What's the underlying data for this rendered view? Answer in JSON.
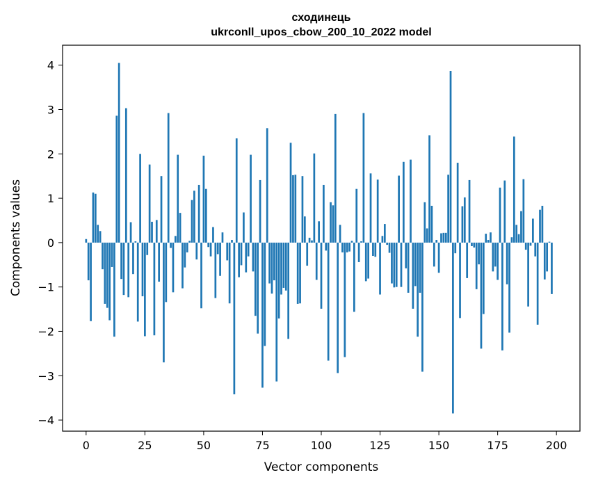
{
  "chart_data": {
    "type": "bar",
    "title": [
      "сходинець",
      "ukrconll_upos_cbow_200_10_2022 model"
    ],
    "xlabel": "Vector components",
    "ylabel": "Components values",
    "xlim": [
      -10,
      210
    ],
    "ylim": [
      -4.25,
      4.45
    ],
    "xticks": [
      0,
      25,
      50,
      75,
      100,
      125,
      150,
      175,
      200
    ],
    "yticks": [
      -4,
      -3,
      -2,
      -1,
      0,
      1,
      2,
      3,
      4
    ],
    "ytick_labels": [
      "−4",
      "−3",
      "−2",
      "−1",
      "0",
      "1",
      "2",
      "3",
      "4"
    ],
    "grid": false,
    "bar_color": "#1f77b4",
    "values": [
      0.08,
      -0.85,
      -1.77,
      1.13,
      1.1,
      0.4,
      0.26,
      -0.6,
      -1.38,
      -1.47,
      -1.75,
      -0.55,
      -2.12,
      2.86,
      4.05,
      -0.82,
      -1.18,
      3.03,
      -1.23,
      0.46,
      -0.71,
      0.03,
      -1.78,
      2.0,
      -1.21,
      -2.11,
      -0.28,
      1.76,
      0.47,
      -2.09,
      0.51,
      -0.88,
      1.5,
      -2.7,
      -1.34,
      2.92,
      -0.12,
      -1.12,
      0.15,
      1.98,
      0.67,
      -1.03,
      -0.56,
      -0.22,
      0.04,
      0.96,
      1.17,
      -0.38,
      1.3,
      -1.48,
      1.96,
      1.21,
      -0.1,
      -0.31,
      0.35,
      -1.25,
      -0.26,
      -0.75,
      0.23,
      0.0,
      -0.4,
      -1.37,
      0.06,
      -3.42,
      2.35,
      -0.78,
      -0.51,
      0.68,
      -0.67,
      -0.31,
      1.98,
      -0.65,
      -1.65,
      -2.05,
      1.41,
      -3.27,
      -2.33,
      2.58,
      -0.92,
      -1.15,
      -0.85,
      -3.13,
      -1.71,
      -1.17,
      -1.02,
      -1.08,
      -2.17,
      2.25,
      1.52,
      1.53,
      -1.38,
      -1.37,
      1.5,
      0.59,
      -0.52,
      0.11,
      0.05,
      2.01,
      -0.84,
      0.48,
      -1.49,
      1.3,
      -0.18,
      -2.66,
      0.91,
      0.84,
      2.9,
      -2.94,
      0.4,
      -0.22,
      -2.58,
      -0.22,
      -0.2,
      0.04,
      -1.56,
      1.21,
      -0.44,
      0.03,
      2.92,
      -0.87,
      -0.81,
      1.56,
      -0.3,
      -0.32,
      1.42,
      -1.17,
      0.15,
      0.42,
      -0.05,
      -0.23,
      -0.92,
      -1.01,
      -1.0,
      1.51,
      -1.0,
      1.82,
      -0.58,
      -1.13,
      1.87,
      -1.49,
      -0.98,
      -2.12,
      -1.13,
      -2.91,
      0.91,
      0.32,
      2.42,
      0.83,
      -0.54,
      0.06,
      -0.68,
      0.21,
      0.22,
      0.22,
      1.53,
      3.87,
      -3.85,
      -0.24,
      1.8,
      -1.7,
      0.82,
      1.02,
      -0.8,
      1.41,
      -0.08,
      -0.11,
      -1.05,
      -0.49,
      -2.39,
      -1.61,
      0.2,
      0.06,
      0.23,
      -0.65,
      -0.54,
      -0.84,
      1.24,
      -2.43,
      1.4,
      -0.94,
      -2.03,
      0.12,
      2.39,
      0.4,
      0.19,
      0.71,
      1.43,
      -0.16,
      -1.44,
      -0.07,
      0.54,
      -0.31,
      -1.85,
      0.74,
      0.83,
      -0.83,
      -0.65,
      0.02,
      -1.16
    ]
  }
}
